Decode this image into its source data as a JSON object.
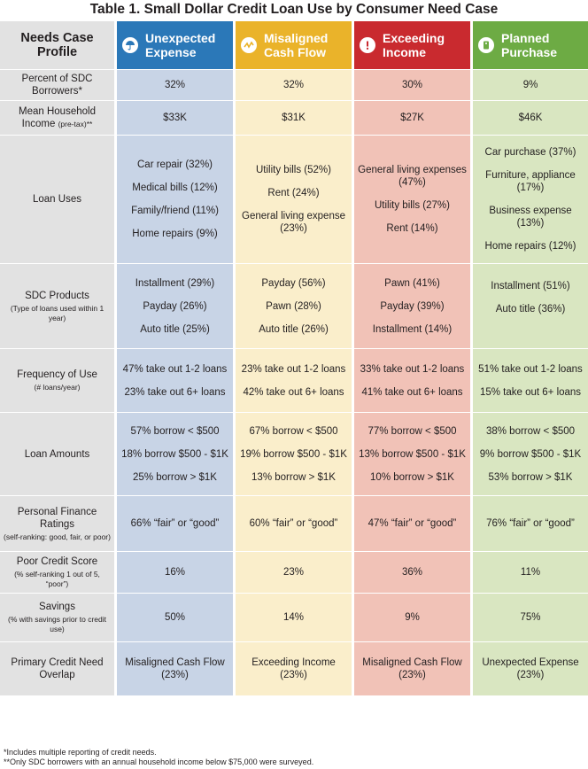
{
  "title": "Table 1. Small Dollar Credit Loan Use by Consumer Need Case",
  "header": {
    "profile_label": "Needs Case Profile",
    "col1": "Unexpected Expense",
    "col2": "Misaligned Cash Flow",
    "col3": "Exceeding Income",
    "col4": "Planned Purchase",
    "icons": [
      "umbrella-icon",
      "zigzag-icon",
      "alert-icon",
      "price-tag-icon"
    ],
    "colors": [
      "#2b78b8",
      "#eab32a",
      "#c92a2f",
      "#6dab44"
    ]
  },
  "rows": {
    "percent": {
      "label": "Percent of SDC Borrowers*",
      "sub": "",
      "v": [
        "32%",
        "32%",
        "30%",
        "9%"
      ]
    },
    "income": {
      "label": "Mean Household Income",
      "sub": "(pre-tax)**",
      "v": [
        "$33K",
        "$31K",
        "$27K",
        "$46K"
      ]
    },
    "uses": {
      "label": "Loan Uses",
      "c1": [
        "Car repair (32%)",
        "Medical bills (12%)",
        "Family/friend (11%)",
        "Home repairs (9%)"
      ],
      "c2": [
        "Utility bills (52%)",
        "Rent (24%)",
        "General living expense (23%)"
      ],
      "c3": [
        "General living expenses (47%)",
        "Utility bills (27%)",
        "Rent (14%)"
      ],
      "c4": [
        "Car purchase (37%)",
        "Furniture, appliance (17%)",
        "Business expense (13%)",
        "Home repairs (12%)"
      ]
    },
    "products": {
      "label": "SDC Products",
      "sub": "(Type of loans used within 1 year)",
      "c1": [
        "Installment (29%)",
        "Payday (26%)",
        "Auto title (25%)"
      ],
      "c2": [
        "Payday (56%)",
        "Pawn (28%)",
        "Auto title (26%)"
      ],
      "c3": [
        "Pawn (41%)",
        "Payday (39%)",
        "Installment (14%)"
      ],
      "c4": [
        "Installment (51%)",
        "Auto title (36%)"
      ]
    },
    "frequency": {
      "label": "Frequency of Use",
      "sub": "(# loans/year)",
      "c1": [
        "47% take out 1-2 loans",
        "23% take out 6+ loans"
      ],
      "c2": [
        "23% take out 1-2 loans",
        "42% take out 6+ loans"
      ],
      "c3": [
        "33% take out 1-2 loans",
        "41% take out 6+ loans"
      ],
      "c4": [
        "51% take out 1-2 loans",
        "15% take out 6+ loans"
      ]
    },
    "amounts": {
      "label": "Loan Amounts",
      "c1": [
        "57% borrow < $500",
        "18% borrow $500 - $1K",
        "25% borrow > $1K"
      ],
      "c2": [
        "67% borrow < $500",
        "19% borrow $500 - $1K",
        "13% borrow > $1K"
      ],
      "c3": [
        "77% borrow < $500",
        "13% borrow $500 - $1K",
        "10% borrow > $1K"
      ],
      "c4": [
        "38% borrow < $500",
        "9% borrow $500 - $1K",
        "53% borrow > $1K"
      ]
    },
    "ratings": {
      "label": "Personal Finance Ratings",
      "sub": "(self-ranking: good, fair, or poor)",
      "v": [
        "66% “fair” or “good”",
        "60% “fair” or “good”",
        "47% “fair” or “good”",
        "76% “fair” or “good”"
      ]
    },
    "credit": {
      "label": "Poor Credit Score",
      "sub": "(% self-ranking 1 out of 5, “poor”)",
      "v": [
        "16%",
        "23%",
        "36%",
        "11%"
      ]
    },
    "savings": {
      "label": "Savings",
      "sub": "(% with savings prior to credit use)",
      "v": [
        "50%",
        "14%",
        "9%",
        "75%"
      ]
    },
    "overlap": {
      "label": "Primary Credit Need Overlap",
      "v": [
        "Misaligned Cash Flow (23%)",
        "Exceeding Income (23%)",
        "Misaligned Cash Flow (23%)",
        "Unexpected Expense (23%)"
      ]
    }
  },
  "footnotes": [
    "*Includes multiple reporting of credit needs.",
    "**Only SDC borrowers with an annual household income below $75,000 were surveyed."
  ]
}
